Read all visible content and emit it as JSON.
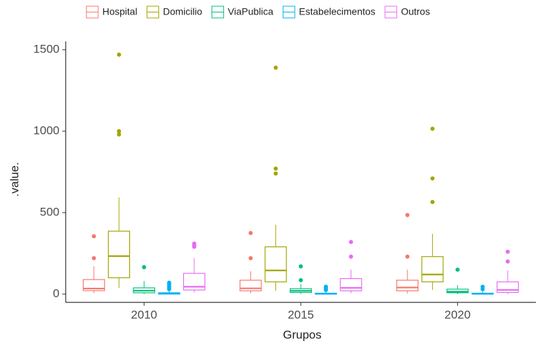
{
  "chart_data": {
    "type": "boxplot",
    "x_label": "Grupos",
    "y_label": ".value.",
    "categories": [
      "2010",
      "2015",
      "2020"
    ],
    "ylim": [
      -51,
      1551
    ],
    "yticks": [
      0,
      500,
      1000,
      1500
    ],
    "series": [
      {
        "name": "Hospital",
        "color": "#F8766D",
        "values": [
          {
            "min": 5,
            "q1": 21,
            "median": 34,
            "q3": 89,
            "max": 170,
            "outliers": [
              220,
              355
            ]
          },
          {
            "min": 5,
            "q1": 20,
            "median": 35,
            "q3": 85,
            "max": 140,
            "outliers": [
              220,
              375
            ]
          },
          {
            "min": 3,
            "q1": 20,
            "median": 40,
            "q3": 85,
            "max": 150,
            "outliers": [
              230,
              485
            ]
          }
        ]
      },
      {
        "name": "Domicilio",
        "color": "#A3A500",
        "values": [
          {
            "min": 38,
            "q1": 100,
            "median": 233,
            "q3": 386,
            "max": 593,
            "outliers": [
              980,
              1000,
              1470
            ]
          },
          {
            "min": 20,
            "q1": 75,
            "median": 145,
            "q3": 290,
            "max": 425,
            "outliers": [
              740,
              770,
              1390
            ]
          },
          {
            "min": 25,
            "q1": 75,
            "median": 120,
            "q3": 230,
            "max": 370,
            "outliers": [
              565,
              710,
              1015
            ]
          }
        ]
      },
      {
        "name": "ViaPublica",
        "color": "#00BF7D",
        "values": [
          {
            "min": 0,
            "q1": 8,
            "median": 21,
            "q3": 38,
            "max": 80,
            "outliers": [
              165
            ]
          },
          {
            "min": 0,
            "q1": 10,
            "median": 20,
            "q3": 33,
            "max": 60,
            "outliers": [
              85,
              170
            ]
          },
          {
            "min": 0,
            "q1": 8,
            "median": 15,
            "q3": 30,
            "max": 55,
            "outliers": [
              150
            ]
          }
        ]
      },
      {
        "name": "Estabelecimentos",
        "color": "#00B0F6",
        "values": [
          {
            "min": 0,
            "q1": 0,
            "median": 3,
            "q3": 8,
            "max": 25,
            "outliers": [
              30,
              40,
              50,
              60,
              70
            ]
          },
          {
            "min": 0,
            "q1": 0,
            "median": 2,
            "q3": 5,
            "max": 15,
            "outliers": [
              25,
              35,
              45
            ]
          },
          {
            "min": 0,
            "q1": 0,
            "median": 2,
            "q3": 5,
            "max": 20,
            "outliers": [
              30,
              45
            ]
          }
        ]
      },
      {
        "name": "Outros",
        "color": "#E76BF3",
        "values": [
          {
            "min": 10,
            "q1": 25,
            "median": 45,
            "q3": 127,
            "max": 220,
            "outliers": [
              290,
              300,
              310
            ]
          },
          {
            "min": 5,
            "q1": 20,
            "median": 38,
            "q3": 95,
            "max": 150,
            "outliers": [
              230,
              320
            ]
          },
          {
            "min": 0,
            "q1": 10,
            "median": 25,
            "q3": 75,
            "max": 145,
            "outliers": [
              200,
              260
            ]
          }
        ]
      }
    ]
  }
}
